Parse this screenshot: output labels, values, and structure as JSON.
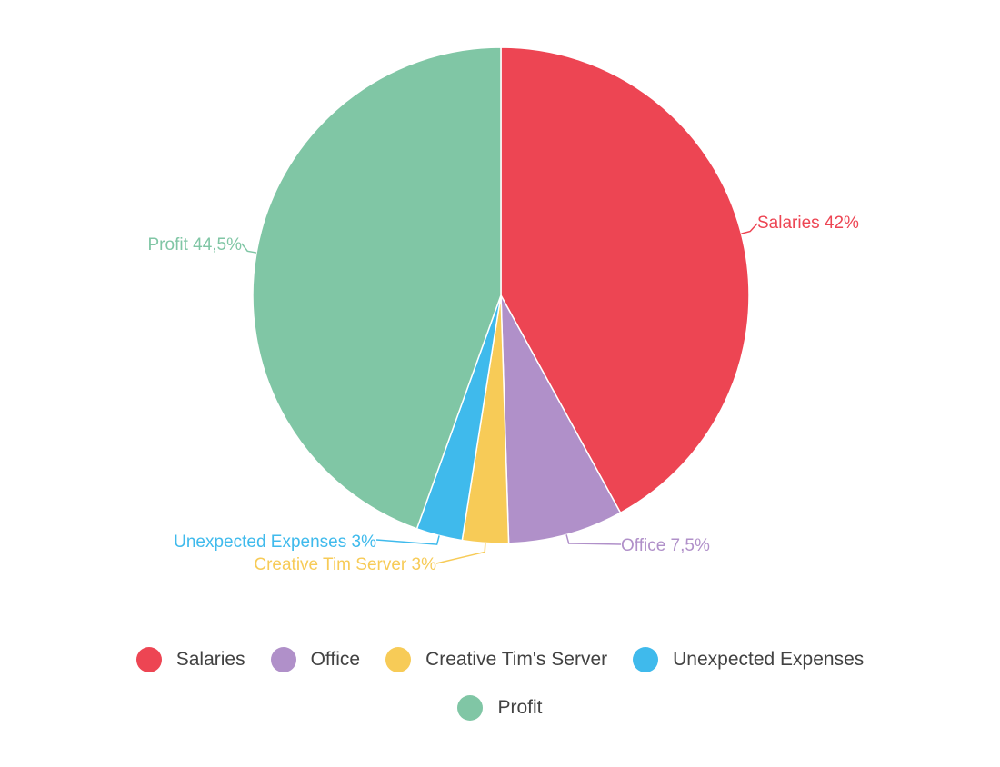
{
  "chart_data": {
    "type": "pie",
    "categories": [
      "Salaries",
      "Office",
      "Creative Tim's Server",
      "Unexpected Expenses",
      "Profit"
    ],
    "values": [
      42,
      7.5,
      3,
      3,
      44.5
    ],
    "slice_labels": [
      "Salaries 42%",
      "Office 7,5%",
      "Creative Tim Server 3%",
      "Unexpected Expenses 3%",
      "Profit 44,5%"
    ],
    "colors": [
      "#ed4553",
      "#b090c9",
      "#f7cb57",
      "#3fbaec",
      "#80c6a5"
    ],
    "legend_position": "bottom",
    "start_angle": "top",
    "direction": "clockwise"
  },
  "legend": {
    "row1": [
      {
        "label": "Salaries",
        "color": "#ed4553"
      },
      {
        "label": "Office",
        "color": "#b090c9"
      },
      {
        "label": "Creative Tim's Server",
        "color": "#f7cb57"
      },
      {
        "label": "Unexpected Expenses",
        "color": "#3fbaec"
      }
    ],
    "row2": [
      {
        "label": "Profit",
        "color": "#80c6a5"
      }
    ]
  }
}
